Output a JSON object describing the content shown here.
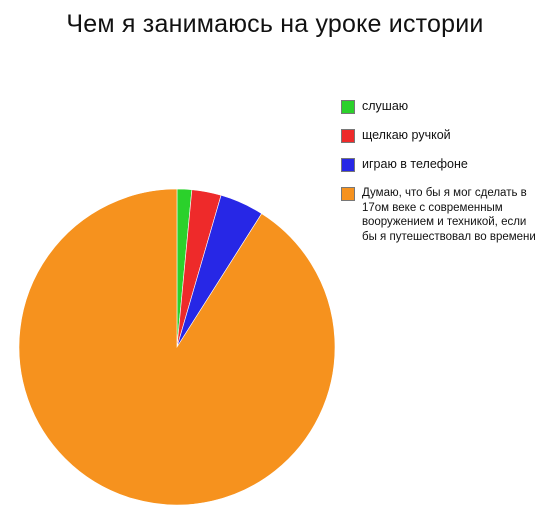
{
  "chart_data": {
    "type": "pie",
    "title": "Чем я занимаюсь на уроке истории",
    "start_angle_deg": 0,
    "direction": "clockwise",
    "legend_position": "right",
    "slices": [
      {
        "label": "слушаю",
        "value": 1.5,
        "color": "#2bd12b"
      },
      {
        "label": "щелкаю ручкой",
        "value": 3,
        "color": "#ee2a2a"
      },
      {
        "label": "играю в телефоне",
        "value": 4.5,
        "color": "#2727e6"
      },
      {
        "label": "Думаю, что бы я мог сделать в 17ом веке с современным вооружением и техникой, если бы я путешествовал во времени",
        "value": 91,
        "color": "#f6921e"
      }
    ]
  }
}
